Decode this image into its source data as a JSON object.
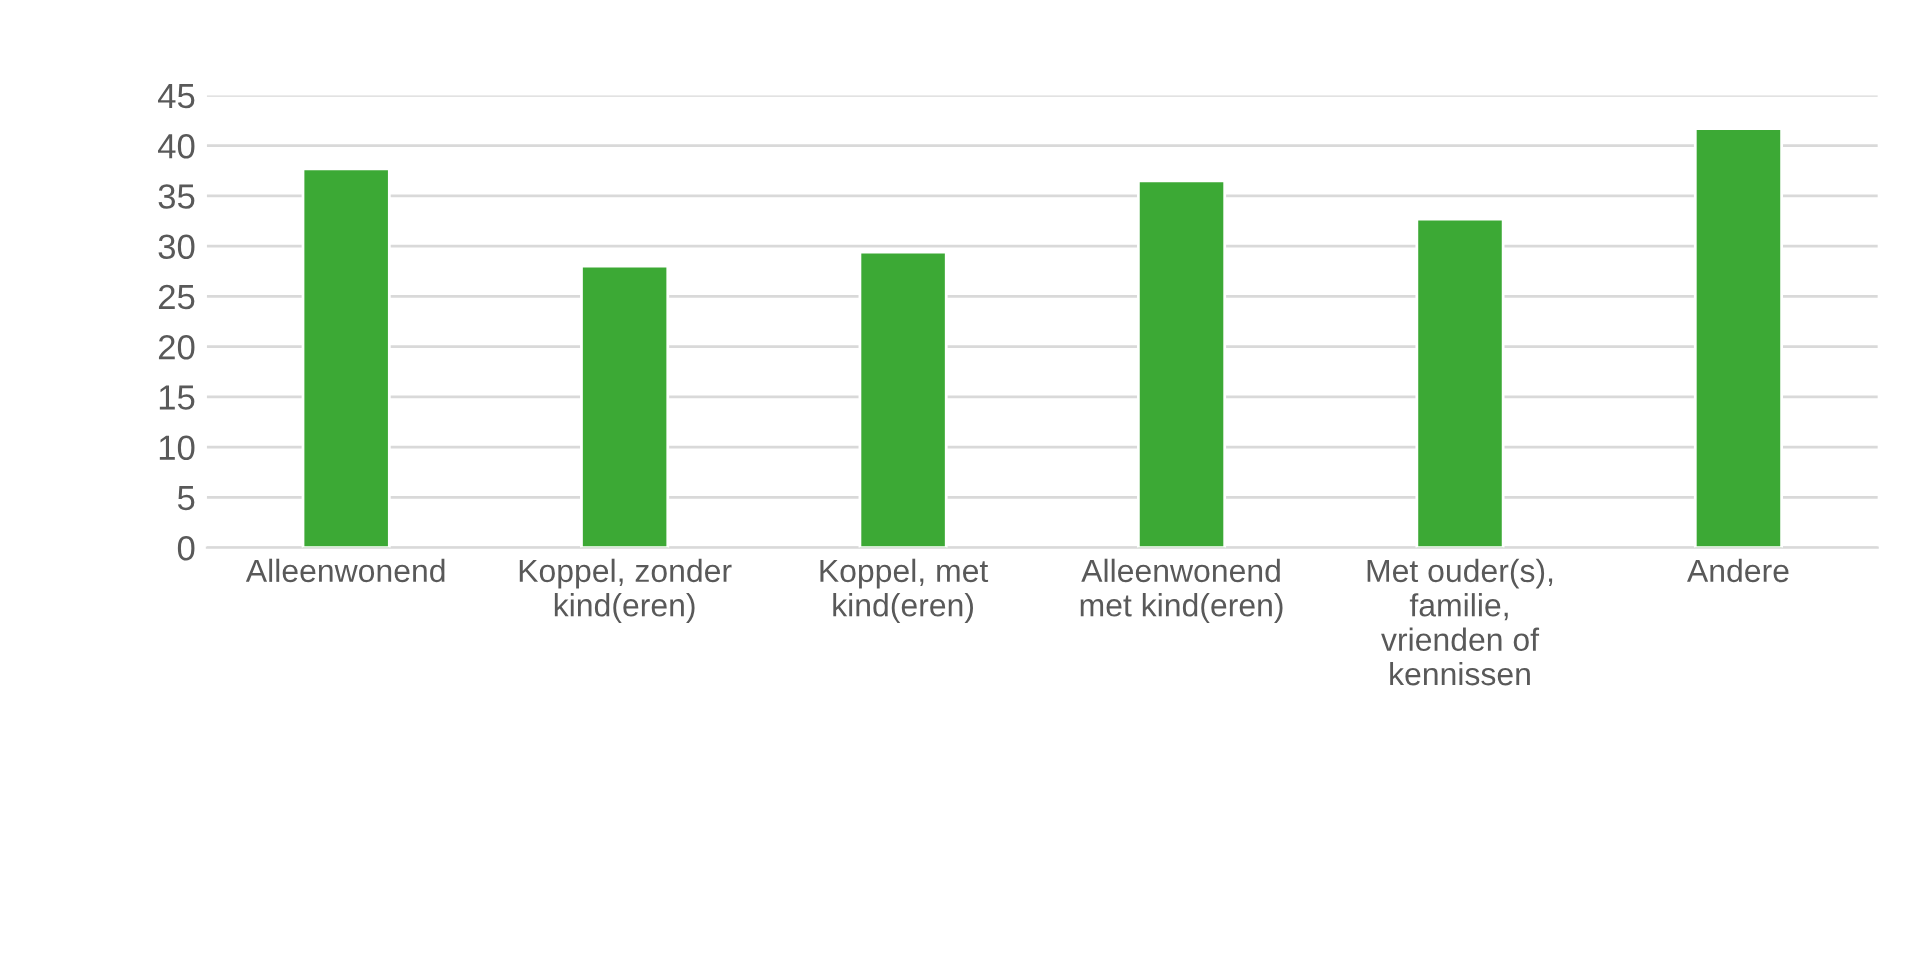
{
  "chart_data": {
    "type": "bar",
    "categories": [
      "Alleenwonend",
      "Koppel, zonder kind(eren)",
      "Koppel, met kind(eren)",
      "Alleenwonend met kind(eren)",
      "Met ouder(s), familie, vrienden of kennissen",
      "Andere"
    ],
    "values": [
      37.7,
      28.0,
      29.4,
      36.5,
      32.7,
      41.7
    ],
    "color": "#3ca935",
    "ylim": [
      0,
      45
    ],
    "yticks": [
      0,
      5,
      10,
      15,
      20,
      25,
      30,
      35,
      40,
      45
    ],
    "grid": "y",
    "legend": false
  }
}
